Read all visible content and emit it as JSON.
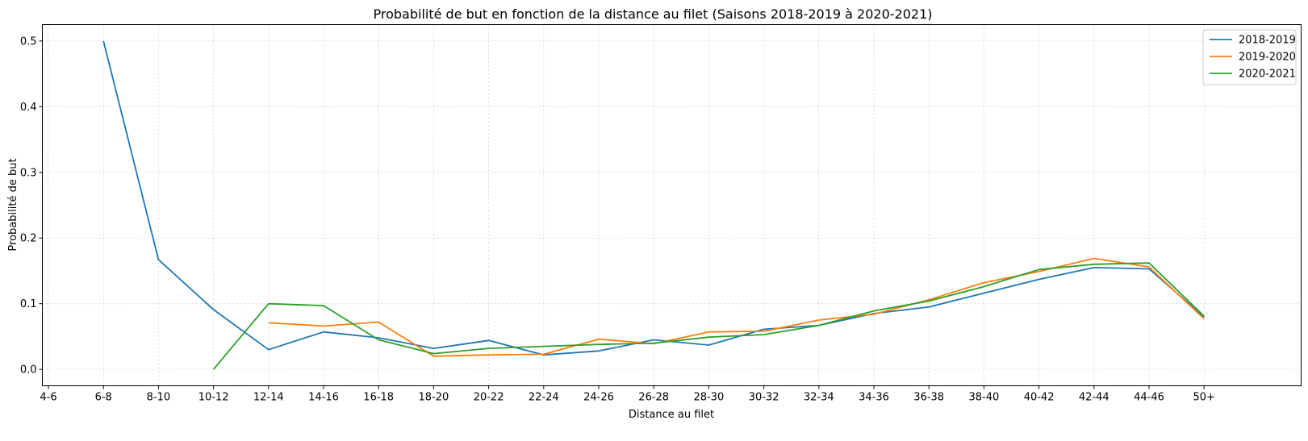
{
  "chart_data": {
    "type": "line",
    "title": "Probabilité de but en fonction de la distance au filet (Saisons 2018-2019 à 2020-2021)",
    "xlabel": "Distance au filet",
    "ylabel": "Probabilité de but",
    "categories": [
      "4-6",
      "6-8",
      "8-10",
      "10-12",
      "12-14",
      "14-16",
      "16-18",
      "18-20",
      "20-22",
      "22-24",
      "24-26",
      "26-28",
      "28-30",
      "30-32",
      "32-34",
      "34-36",
      "36-38",
      "38-40",
      "40-42",
      "42-44",
      "44-46",
      "50+"
    ],
    "yticks": [
      0.0,
      0.1,
      0.2,
      0.3,
      0.4,
      0.5
    ],
    "ytick_labels": [
      "0.0",
      "0.1",
      "0.2",
      "0.3",
      "0.4",
      "0.5"
    ],
    "ylim": [
      -0.025,
      0.525
    ],
    "grid": true,
    "legend_position": "top-right",
    "series": [
      {
        "name": "2018-2019",
        "color": "#1f77b4",
        "values": [
          null,
          0.5,
          0.167,
          0.091,
          0.03,
          0.057,
          0.048,
          0.032,
          0.044,
          0.022,
          0.028,
          0.045,
          0.037,
          0.061,
          0.067,
          0.085,
          0.095,
          0.116,
          0.137,
          0.155,
          0.153,
          0.08
        ]
      },
      {
        "name": "2019-2020",
        "color": "#ff7f0e",
        "values": [
          null,
          null,
          null,
          null,
          0.071,
          0.066,
          0.072,
          0.02,
          0.022,
          0.023,
          0.046,
          0.039,
          0.057,
          0.058,
          0.075,
          0.084,
          0.106,
          0.132,
          0.149,
          0.169,
          0.156,
          0.077
        ]
      },
      {
        "name": "2020-2021",
        "color": "#2ca02c",
        "values": [
          null,
          null,
          null,
          0.0,
          0.1,
          0.097,
          0.045,
          0.024,
          0.032,
          0.035,
          0.038,
          0.04,
          0.049,
          0.053,
          0.067,
          0.089,
          0.104,
          0.126,
          0.152,
          0.16,
          0.162,
          0.081
        ]
      }
    ]
  }
}
